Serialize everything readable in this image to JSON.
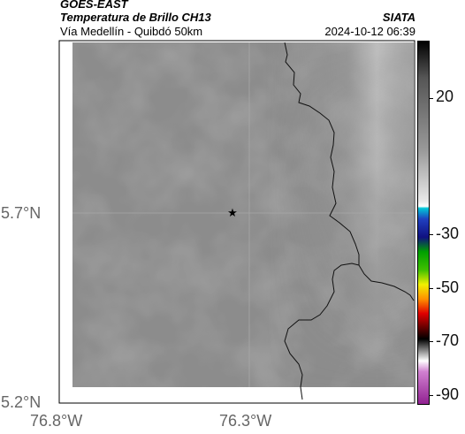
{
  "header": {
    "line1": "GOES-EAST",
    "line2": "Temperatura de Brillo CH13",
    "line3": "Vía Medellín - Quibdó 50km",
    "agency": "SIATA",
    "datetime": "2024-10-12 06:39"
  },
  "map": {
    "y_ticks": [
      "5.7°N",
      "5.2°N"
    ],
    "x_ticks": [
      "76.8°W",
      "76.3°W"
    ],
    "marker": "star-marker"
  },
  "colorbar": {
    "ticks": [
      "20",
      "-30",
      "-50",
      "-70",
      "-90"
    ],
    "colors": {
      "black": "#000000",
      "gray": "#8a8a8a",
      "cyan": "#00c8d8",
      "blue": "#1010a0",
      "green": "#00b000",
      "yellow": "#f0f000",
      "orange": "#ff8000",
      "red": "#c00000",
      "magenta": "#c050c0"
    }
  }
}
